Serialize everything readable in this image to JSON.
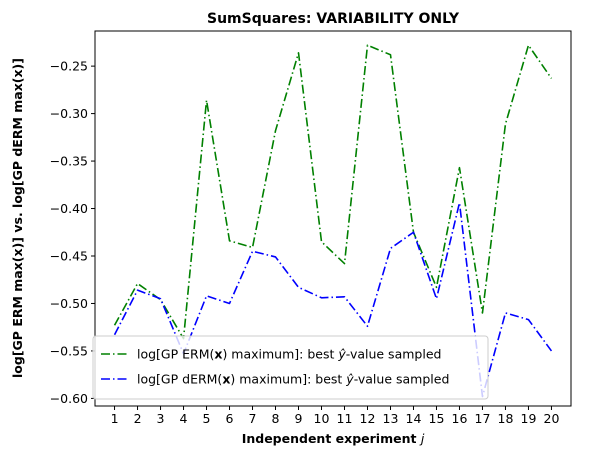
{
  "chart_data": {
    "type": "line",
    "title": "SumSquares: VARIABILITY ONLY",
    "xlabel_bold": "Independent experiment",
    "xlabel_italic": "j",
    "ylabel": "log[GP ERM max(x)] vs. log[GP dERM max(x)]",
    "x": [
      1,
      2,
      3,
      4,
      5,
      6,
      7,
      8,
      9,
      10,
      11,
      12,
      13,
      14,
      15,
      16,
      17,
      18,
      19,
      20
    ],
    "x_ticks": [
      "1",
      "2",
      "3",
      "4",
      "5",
      "6",
      "7",
      "8",
      "9",
      "10",
      "11",
      "12",
      "13",
      "14",
      "15",
      "16",
      "17",
      "18",
      "19",
      "20"
    ],
    "xlim": [
      0.15,
      20.85
    ],
    "ylim": [
      -0.608,
      -0.213
    ],
    "y_ticks": [
      -0.25,
      -0.3,
      -0.35,
      -0.4,
      -0.45,
      -0.5,
      -0.55,
      -0.6
    ],
    "y_tick_labels": [
      "−0.25",
      "−0.30",
      "−0.35",
      "−0.40",
      "−0.45",
      "−0.50",
      "−0.55",
      "−0.60"
    ],
    "grid": false,
    "legend_placement": "lower-left",
    "series": [
      {
        "legend_pre": "log[GP ERM(",
        "legend_bold": "x",
        "legend_mid": ") maximum]: best ",
        "legend_yhat": "ŷ",
        "legend_post": "-value sampled",
        "color": "#008000",
        "values": [
          -0.523,
          -0.479,
          -0.496,
          -0.537,
          -0.286,
          -0.434,
          -0.441,
          -0.318,
          -0.236,
          -0.435,
          -0.458,
          -0.228,
          -0.238,
          -0.425,
          -0.483,
          -0.357,
          -0.51,
          -0.311,
          -0.228,
          -0.263
        ]
      },
      {
        "legend_pre": "log[GP dERM(",
        "legend_bold": "x",
        "legend_mid": ") maximum]: best ",
        "legend_yhat": "ŷ",
        "legend_post": "-value sampled",
        "color": "#0000ff",
        "values": [
          -0.533,
          -0.486,
          -0.495,
          -0.553,
          -0.492,
          -0.5,
          -0.445,
          -0.451,
          -0.483,
          -0.494,
          -0.493,
          -0.524,
          -0.442,
          -0.425,
          -0.495,
          -0.394,
          -0.598,
          -0.51,
          -0.517,
          -0.55
        ]
      }
    ]
  }
}
